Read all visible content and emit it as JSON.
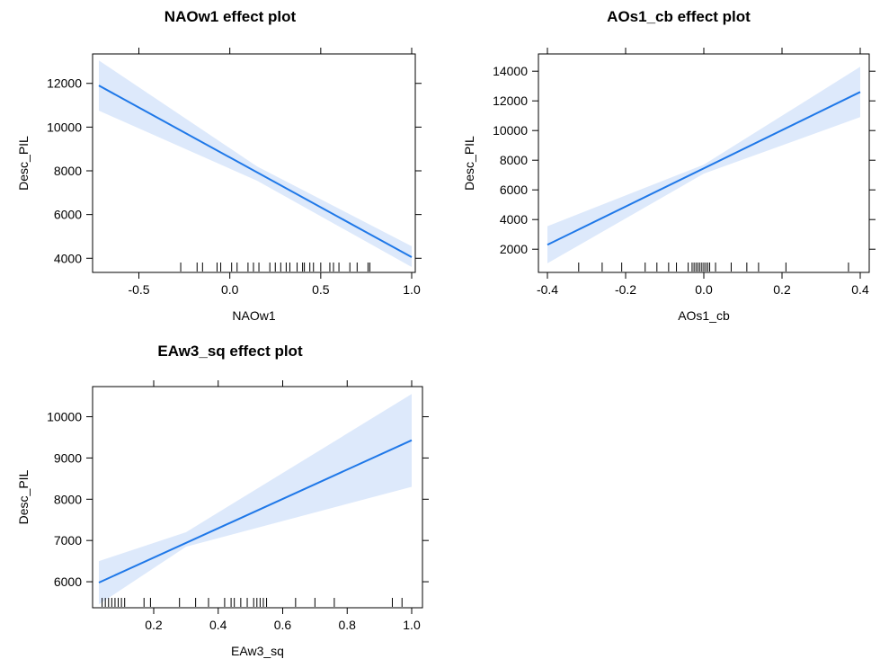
{
  "colors": {
    "line": "#1f78e8",
    "band": "#dde9fb",
    "axis": "#000000"
  },
  "chart_data": [
    {
      "type": "line",
      "title": "NAOw1 effect plot",
      "xlabel": "NAOw1",
      "ylabel": "Desc_PIL",
      "xlim": [
        -0.72,
        1.0
      ],
      "ylim": [
        3600,
        13100
      ],
      "x_ticks": [
        -0.5,
        0.0,
        0.5,
        1.0
      ],
      "x_tick_labels": [
        "-0.5",
        "0.0",
        "0.5",
        "1.0"
      ],
      "y_ticks": [
        4000,
        6000,
        8000,
        10000,
        12000
      ],
      "y_tick_labels": [
        "4000",
        "6000",
        "8000",
        "10000",
        "12000"
      ],
      "fit": {
        "x": [
          -0.72,
          1.0
        ],
        "y": [
          11900,
          4050
        ]
      },
      "band": {
        "x": [
          -0.72,
          0.15,
          1.0
        ],
        "lower": [
          10750,
          7550,
          3600
        ],
        "upper": [
          13050,
          8200,
          4550
        ]
      },
      "rug": [
        -0.27,
        -0.18,
        -0.15,
        -0.07,
        -0.05,
        0.01,
        0.04,
        0.1,
        0.13,
        0.16,
        0.22,
        0.25,
        0.28,
        0.31,
        0.33,
        0.37,
        0.4,
        0.41,
        0.44,
        0.46,
        0.5,
        0.55,
        0.57,
        0.6,
        0.66,
        0.7,
        0.76,
        0.77
      ]
    },
    {
      "type": "line",
      "title": "AOs1_cb effect plot",
      "xlabel": "AOs1_cb",
      "ylabel": "Desc_PIL",
      "xlim": [
        -0.4,
        0.4
      ],
      "ylim": [
        800,
        14800
      ],
      "x_ticks": [
        -0.4,
        -0.2,
        0.0,
        0.2,
        0.4
      ],
      "x_tick_labels": [
        "-0.4",
        "-0.2",
        "0.0",
        "0.2",
        "0.4"
      ],
      "y_ticks": [
        2000,
        4000,
        6000,
        8000,
        10000,
        12000,
        14000
      ],
      "y_tick_labels": [
        "2000",
        "4000",
        "6000",
        "8000",
        "10000",
        "12000",
        "14000"
      ],
      "fit": {
        "x": [
          -0.4,
          0.4
        ],
        "y": [
          2300,
          12600
        ]
      },
      "band": {
        "x": [
          -0.4,
          0.0,
          0.4
        ],
        "lower": [
          1050,
          7100,
          10900
        ],
        "upper": [
          3550,
          7700,
          14300
        ]
      },
      "rug": [
        -0.32,
        -0.26,
        -0.21,
        -0.15,
        -0.12,
        -0.09,
        -0.07,
        -0.04,
        -0.03,
        -0.025,
        -0.02,
        -0.015,
        -0.01,
        -0.005,
        0.0,
        0.005,
        0.01,
        0.015,
        0.03,
        0.07,
        0.11,
        0.14,
        0.21,
        0.37
      ]
    },
    {
      "type": "line",
      "title": "EAw3_sq effect plot",
      "xlabel": "EAw3_sq",
      "ylabel": "Desc_PIL",
      "xlim": [
        0.03,
        1.0
      ],
      "ylim": [
        5500,
        10600
      ],
      "x_ticks": [
        0.2,
        0.4,
        0.6,
        0.8,
        1.0
      ],
      "x_tick_labels": [
        "0.2",
        "0.4",
        "0.6",
        "0.8",
        "1.0"
      ],
      "y_ticks": [
        6000,
        7000,
        8000,
        9000,
        10000
      ],
      "y_tick_labels": [
        "6000",
        "7000",
        "8000",
        "9000",
        "10000"
      ],
      "fit": {
        "x": [
          0.03,
          1.0
        ],
        "y": [
          5980,
          9430
        ]
      },
      "band": {
        "x": [
          0.03,
          0.3,
          1.0
        ],
        "lower": [
          5450,
          6850,
          8300
        ],
        "upper": [
          6500,
          7200,
          10550
        ]
      },
      "rug": [
        0.04,
        0.05,
        0.06,
        0.07,
        0.08,
        0.09,
        0.1,
        0.11,
        0.17,
        0.19,
        0.28,
        0.33,
        0.37,
        0.42,
        0.44,
        0.45,
        0.47,
        0.49,
        0.51,
        0.52,
        0.53,
        0.54,
        0.55,
        0.64,
        0.7,
        0.76,
        0.94,
        0.97
      ]
    }
  ]
}
